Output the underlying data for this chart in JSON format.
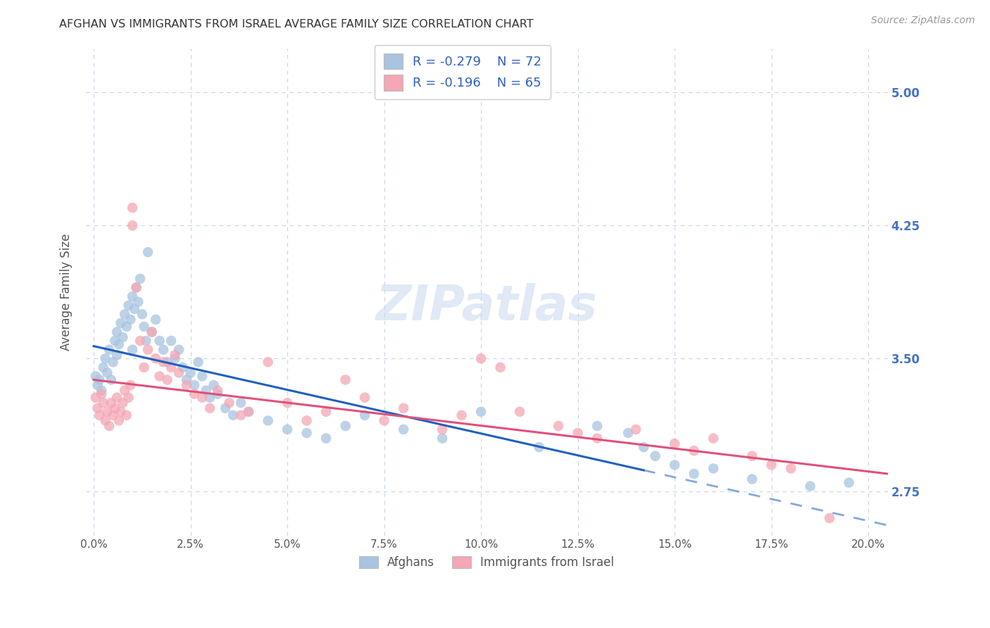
{
  "title": "AFGHAN VS IMMIGRANTS FROM ISRAEL AVERAGE FAMILY SIZE CORRELATION CHART",
  "source": "Source: ZipAtlas.com",
  "ylabel": "Average Family Size",
  "xlabel_ticks": [
    "0.0%",
    "2.5%",
    "5.0%",
    "7.5%",
    "10.0%",
    "12.5%",
    "15.0%",
    "17.5%",
    "20.0%"
  ],
  "yticks": [
    2.75,
    3.5,
    4.25,
    5.0
  ],
  "ylim": [
    2.5,
    5.25
  ],
  "xlim": [
    -0.2,
    20.5
  ],
  "watermark": "ZIPatlas",
  "color_afghan": "#a8c4e0",
  "color_israel": "#f4a7b5",
  "color_line_afghan": "#2060c0",
  "color_line_israel": "#e0507a",
  "color_axis_right": "#4472c4",
  "dot_size": 110,
  "dot_alpha": 0.75,
  "afghan_x": [
    0.05,
    0.1,
    0.15,
    0.2,
    0.25,
    0.3,
    0.35,
    0.4,
    0.45,
    0.5,
    0.55,
    0.6,
    0.6,
    0.65,
    0.7,
    0.75,
    0.8,
    0.85,
    0.9,
    0.95,
    1.0,
    1.0,
    1.05,
    1.1,
    1.15,
    1.2,
    1.25,
    1.3,
    1.35,
    1.4,
    1.5,
    1.6,
    1.7,
    1.8,
    1.9,
    2.0,
    2.1,
    2.2,
    2.3,
    2.4,
    2.5,
    2.6,
    2.7,
    2.8,
    2.9,
    3.0,
    3.1,
    3.2,
    3.4,
    3.6,
    3.8,
    4.0,
    4.5,
    5.0,
    5.5,
    6.0,
    6.5,
    7.0,
    8.0,
    9.0,
    10.0,
    11.5,
    13.0,
    13.8,
    14.2,
    14.5,
    15.0,
    15.5,
    16.0,
    17.0,
    18.5,
    19.5
  ],
  "afghan_y": [
    3.4,
    3.35,
    3.38,
    3.32,
    3.45,
    3.5,
    3.42,
    3.55,
    3.38,
    3.48,
    3.6,
    3.52,
    3.65,
    3.58,
    3.7,
    3.62,
    3.75,
    3.68,
    3.8,
    3.72,
    3.85,
    3.55,
    3.78,
    3.9,
    3.82,
    3.95,
    3.75,
    3.68,
    3.6,
    4.1,
    3.65,
    3.72,
    3.6,
    3.55,
    3.48,
    3.6,
    3.5,
    3.55,
    3.45,
    3.38,
    3.42,
    3.35,
    3.48,
    3.4,
    3.32,
    3.28,
    3.35,
    3.3,
    3.22,
    3.18,
    3.25,
    3.2,
    3.15,
    3.1,
    3.08,
    3.05,
    3.12,
    3.18,
    3.1,
    3.05,
    3.2,
    3.0,
    3.12,
    3.08,
    3.0,
    2.95,
    2.9,
    2.85,
    2.88,
    2.82,
    2.78,
    2.8
  ],
  "israel_x": [
    0.05,
    0.1,
    0.15,
    0.2,
    0.25,
    0.3,
    0.35,
    0.4,
    0.45,
    0.5,
    0.55,
    0.6,
    0.65,
    0.7,
    0.75,
    0.8,
    0.85,
    0.9,
    0.95,
    1.0,
    1.0,
    1.1,
    1.2,
    1.3,
    1.4,
    1.5,
    1.6,
    1.7,
    1.8,
    1.9,
    2.0,
    2.1,
    2.2,
    2.4,
    2.6,
    2.8,
    3.0,
    3.2,
    3.5,
    3.8,
    4.0,
    4.5,
    5.0,
    5.5,
    6.0,
    6.5,
    7.0,
    7.5,
    8.0,
    9.0,
    9.5,
    10.0,
    10.5,
    11.0,
    12.0,
    12.5,
    13.0,
    14.0,
    15.0,
    15.5,
    16.0,
    17.0,
    17.5,
    18.0,
    19.0
  ],
  "israel_y": [
    3.28,
    3.22,
    3.18,
    3.3,
    3.25,
    3.15,
    3.2,
    3.12,
    3.25,
    3.18,
    3.22,
    3.28,
    3.15,
    3.2,
    3.25,
    3.32,
    3.18,
    3.28,
    3.35,
    4.35,
    4.25,
    3.9,
    3.6,
    3.45,
    3.55,
    3.65,
    3.5,
    3.4,
    3.48,
    3.38,
    3.45,
    3.52,
    3.42,
    3.35,
    3.3,
    3.28,
    3.22,
    3.32,
    3.25,
    3.18,
    3.2,
    3.48,
    3.25,
    3.15,
    3.2,
    3.38,
    3.28,
    3.15,
    3.22,
    3.1,
    3.18,
    3.5,
    3.45,
    3.2,
    3.12,
    3.08,
    3.05,
    3.1,
    3.02,
    2.98,
    3.05,
    2.95,
    2.9,
    2.88,
    2.6
  ],
  "line_afghan_x0": 0.0,
  "line_afghan_y0": 3.57,
  "line_afghan_x1": 14.2,
  "line_afghan_y1": 2.87,
  "line_afghan_dash_x0": 14.2,
  "line_afghan_dash_x1": 20.5,
  "line_israel_x0": 0.0,
  "line_israel_y0": 3.38,
  "line_israel_x1": 20.5,
  "line_israel_y1": 2.85
}
